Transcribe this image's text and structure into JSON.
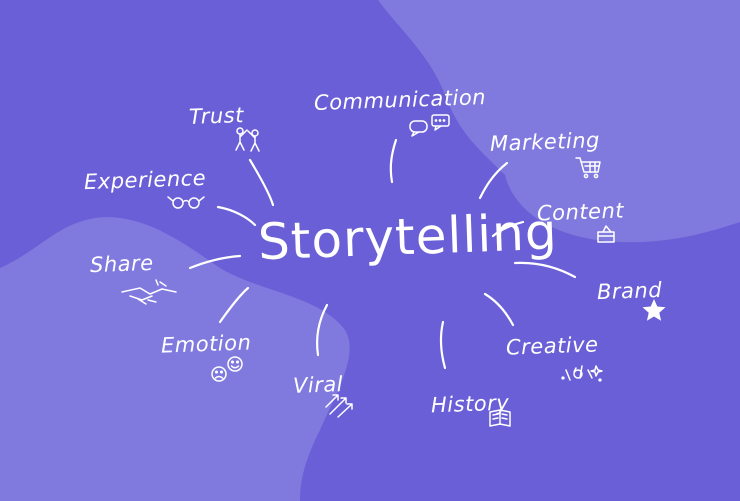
{
  "center_label": "Storytelling",
  "nodes": [
    {
      "id": "communication",
      "label": "Communication",
      "icon": "speech-bubbles-icon"
    },
    {
      "id": "trust",
      "label": "Trust",
      "icon": "people-high-five-icon"
    },
    {
      "id": "marketing",
      "label": "Marketing",
      "icon": "shopping-cart-icon"
    },
    {
      "id": "experience",
      "label": "Experience",
      "icon": "glasses-icon"
    },
    {
      "id": "content",
      "label": "Content",
      "icon": "content-box-icon"
    },
    {
      "id": "share",
      "label": "Share",
      "icon": "handshake-icon"
    },
    {
      "id": "brand",
      "label": "Brand",
      "icon": "star-icon"
    },
    {
      "id": "emotion",
      "label": "Emotion",
      "icon": "faces-icon"
    },
    {
      "id": "creative",
      "label": "Creative",
      "icon": "sparkle-doodle-icon"
    },
    {
      "id": "viral",
      "label": "Viral",
      "icon": "arrows-icon"
    },
    {
      "id": "history",
      "label": "History",
      "icon": "book-icon"
    }
  ],
  "colors": {
    "background": "#6a5fd6",
    "blob_light": "#8079de",
    "text": "#ffffff"
  }
}
